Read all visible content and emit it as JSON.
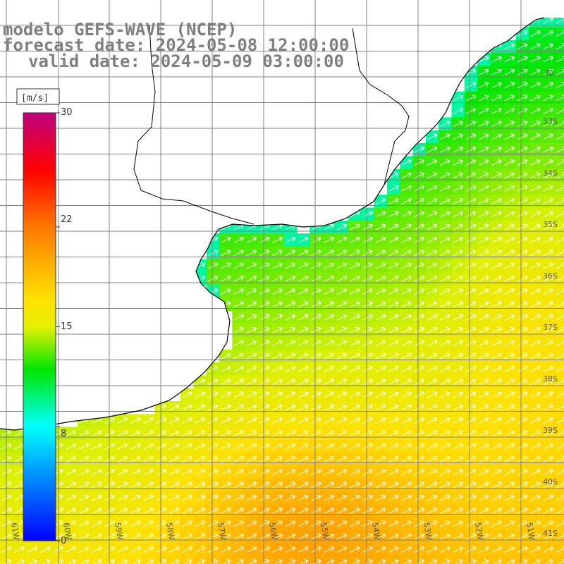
{
  "title": {
    "line1": "modelo GEFS-WAVE (NCEP)",
    "line2": "forecast date: 2024-05-08 12:00:00",
    "line3": "valid date: 2024-05-09 03:00:00"
  },
  "colorbar": {
    "unit": "[m/s]",
    "ticks": [
      "30",
      "22",
      "15",
      "8",
      "0"
    ],
    "tick_values": [
      30,
      22,
      15,
      8,
      0
    ],
    "range": [
      0,
      30
    ],
    "colors": [
      "#0000ff",
      "#00ffff",
      "#00ff00",
      "#ffff00",
      "#ff8000",
      "#ff0000",
      "#c0007f"
    ]
  },
  "map": {
    "lat_labels": [
      "33S",
      "34S",
      "35S",
      "36S",
      "37S",
      "38S",
      "39S",
      "40S",
      "41S"
    ],
    "lon_labels": [
      "60W",
      "59W",
      "58W",
      "57W",
      "56W",
      "55W",
      "54W",
      "53W",
      "52W",
      "51W"
    ],
    "lat_label_partial": "32",
    "lon_label_partial": "61W",
    "land_color": "#ffffff",
    "coast_color": "#000000",
    "grid_color": "#808080",
    "arrow_color": "#ffffff",
    "wind_direction": "towards north-east"
  }
}
